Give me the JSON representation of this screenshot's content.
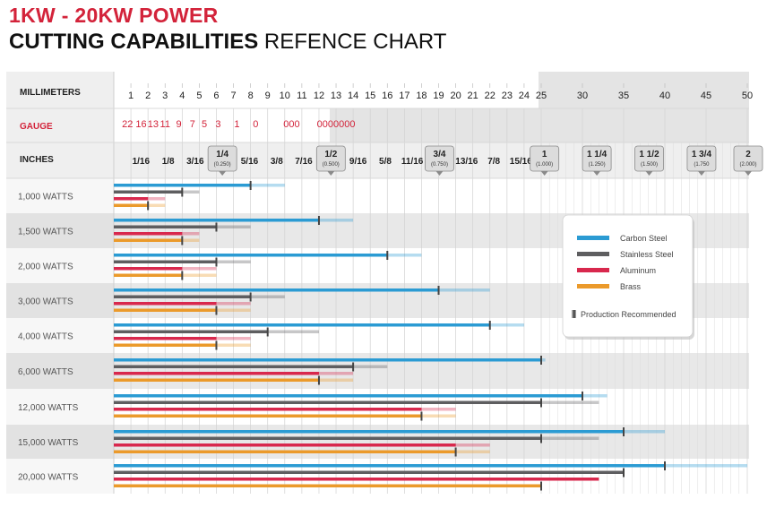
{
  "title": {
    "line1": "1KW - 20KW POWER",
    "line2_bold": "CUTTING CAPABILITIES",
    "line2_rest": " REFENCE CHART"
  },
  "labels": {
    "millimeters": "MILLIMETERS",
    "gauge": "GAUGE",
    "inches": "INCHES"
  },
  "colors": {
    "carbon": "#2b9bd3",
    "stainless": "#5e5e60",
    "aluminum": "#d8284d",
    "brass": "#eb9a2b",
    "gauge_text": "#d3233a",
    "shade": "#e8e8e8",
    "grid": "#c9c9c9"
  },
  "chart_data": {
    "type": "bar",
    "orientation": "horizontal",
    "x_unit": "mm",
    "xlim": [
      0,
      50
    ],
    "mm_ticks": [
      "1",
      "2",
      "3",
      "4",
      "5",
      "6",
      "7",
      "8",
      "9",
      "10",
      "11",
      "12",
      "13",
      "14",
      "15",
      "16",
      "17",
      "18",
      "19",
      "20",
      "21",
      "22",
      "23",
      "24",
      "25",
      "30",
      "35",
      "40",
      "45",
      "50"
    ],
    "gauge_ticks": [
      {
        "label": "22",
        "mm": 0.8
      },
      {
        "label": "16",
        "mm": 1.6
      },
      {
        "label": "13",
        "mm": 2.3
      },
      {
        "label": "11",
        "mm": 3.0
      },
      {
        "label": "9",
        "mm": 3.8
      },
      {
        "label": "7",
        "mm": 4.6
      },
      {
        "label": "5",
        "mm": 5.3
      },
      {
        "label": "3",
        "mm": 6.1
      },
      {
        "label": "1",
        "mm": 7.2
      },
      {
        "label": "0",
        "mm": 8.3
      },
      {
        "label": "000",
        "mm": 10.4
      },
      {
        "label": "0000000",
        "mm": 13.0
      }
    ],
    "inch_ticks": [
      {
        "label": "1/16",
        "mm": 1.59
      },
      {
        "label": "1/8",
        "mm": 3.18
      },
      {
        "label": "3/16",
        "mm": 4.76
      },
      {
        "label": "1/4",
        "sub": "(0.250)",
        "mm": 6.35,
        "boxed": true
      },
      {
        "label": "5/16",
        "mm": 7.94
      },
      {
        "label": "3/8",
        "mm": 9.53
      },
      {
        "label": "7/16",
        "mm": 11.11
      },
      {
        "label": "1/2",
        "sub": "(0.500)",
        "mm": 12.7,
        "boxed": true
      },
      {
        "label": "9/16",
        "mm": 14.29
      },
      {
        "label": "5/8",
        "mm": 15.88
      },
      {
        "label": "11/16",
        "mm": 17.46
      },
      {
        "label": "3/4",
        "sub": "(0.750)",
        "mm": 19.05,
        "boxed": true
      },
      {
        "label": "13/16",
        "mm": 20.64
      },
      {
        "label": "7/8",
        "mm": 22.23
      },
      {
        "label": "15/16",
        "mm": 23.81
      },
      {
        "label": "1",
        "sub": "(1.000)",
        "mm": 25.4,
        "boxed": true
      },
      {
        "label": "1 1/4",
        "sub": "(1.250)",
        "mm": 31.75,
        "boxed": true
      },
      {
        "label": "1 1/2",
        "sub": "(1.500)",
        "mm": 38.1,
        "boxed": true
      },
      {
        "label": "1 3/4",
        "sub": "(1.750",
        "mm": 44.45,
        "boxed": true
      },
      {
        "label": "2",
        "sub": "(2.000)",
        "mm": 50.8,
        "boxed": true
      }
    ],
    "series": [
      {
        "name": "Carbon Steel",
        "key": "carbon"
      },
      {
        "name": "Stainless Steel",
        "key": "stainless"
      },
      {
        "name": "Aluminum",
        "key": "aluminum"
      },
      {
        "name": "Brass",
        "key": "brass"
      }
    ],
    "rows": [
      {
        "label": "1,000 WATTS",
        "bars": [
          {
            "max": 10,
            "rec": 8
          },
          {
            "max": 5,
            "rec": 4
          },
          {
            "max": 3,
            "rec": 2
          },
          {
            "max": 3,
            "rec": 2
          }
        ]
      },
      {
        "label": "1,500 WATTS",
        "bars": [
          {
            "max": 14,
            "rec": 12
          },
          {
            "max": 8,
            "rec": 6
          },
          {
            "max": 5,
            "rec": 4
          },
          {
            "max": 5,
            "rec": 4
          }
        ]
      },
      {
        "label": "2,000 WATTS",
        "bars": [
          {
            "max": 18,
            "rec": 16
          },
          {
            "max": 8,
            "rec": 6
          },
          {
            "max": 6,
            "rec": 4
          },
          {
            "max": 6,
            "rec": 4
          }
        ]
      },
      {
        "label": "3,000 WATTS",
        "bars": [
          {
            "max": 22,
            "rec": 19
          },
          {
            "max": 10,
            "rec": 8
          },
          {
            "max": 8,
            "rec": 6
          },
          {
            "max": 8,
            "rec": 6
          }
        ]
      },
      {
        "label": "4,000 WATTS",
        "bars": [
          {
            "max": 24,
            "rec": 22
          },
          {
            "max": 12,
            "rec": 9
          },
          {
            "max": 8,
            "rec": 6
          },
          {
            "max": 8,
            "rec": 6
          }
        ]
      },
      {
        "label": "6,000 WATTS",
        "bars": [
          {
            "max": 25.5,
            "rec": 25
          },
          {
            "max": 16,
            "rec": 14
          },
          {
            "max": 14,
            "rec": 12
          },
          {
            "max": 14,
            "rec": 12
          }
        ]
      },
      {
        "label": "12,000 WATTS",
        "bars": [
          {
            "max": 33,
            "rec": 30
          },
          {
            "max": 32,
            "rec": 25
          },
          {
            "max": 20,
            "rec": 18
          },
          {
            "max": 20,
            "rec": 18
          }
        ]
      },
      {
        "label": "15,000 WATTS",
        "bars": [
          {
            "max": 40,
            "rec": 35
          },
          {
            "max": 32,
            "rec": 25
          },
          {
            "max": 22,
            "rec": 20
          },
          {
            "max": 22,
            "rec": 20
          }
        ]
      },
      {
        "label": "20,000 WATTS",
        "bars": [
          {
            "max": 50,
            "rec": 40
          },
          {
            "max": 35,
            "rec": 35
          },
          {
            "max": 30,
            "rec": 32
          },
          {
            "max": 25,
            "rec": 25
          }
        ]
      }
    ],
    "legend": {
      "placement": "right",
      "items": [
        "Carbon Steel",
        "Stainless Steel",
        "Aluminum",
        "Brass"
      ],
      "marker_label": "Production Recommended"
    }
  }
}
